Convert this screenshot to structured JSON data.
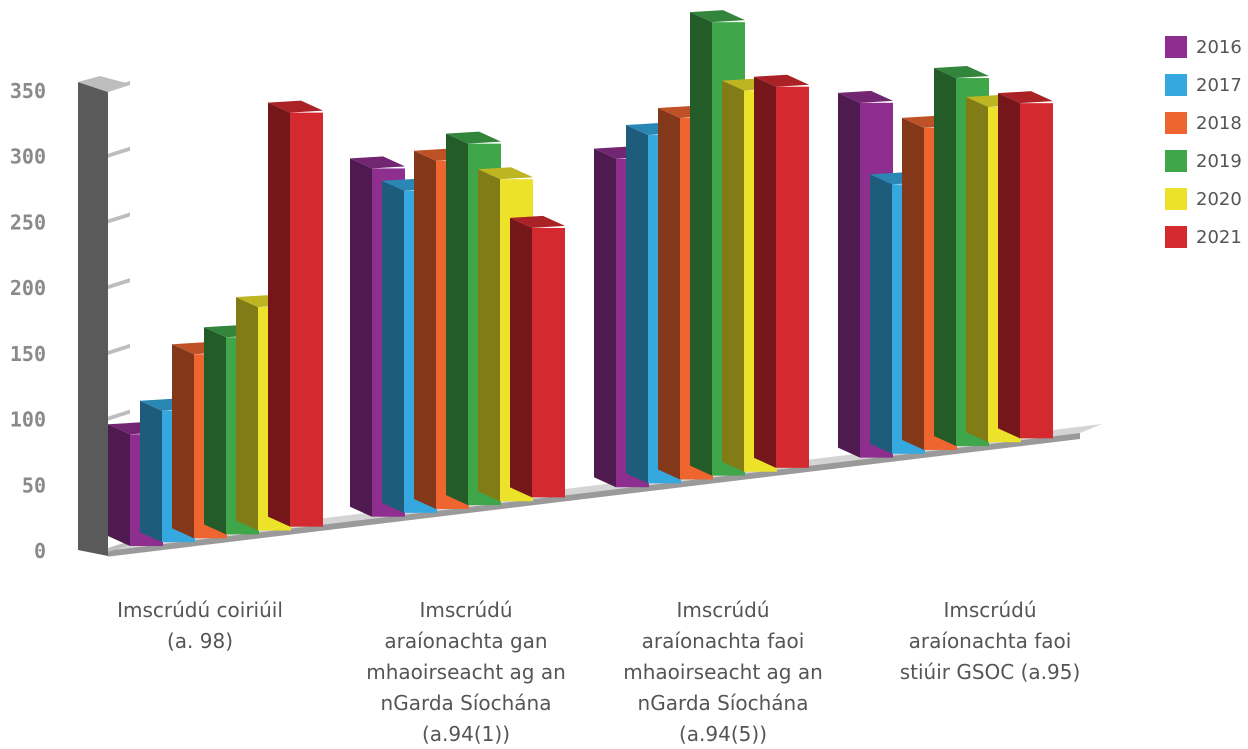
{
  "chart_data": {
    "type": "bar",
    "title": "",
    "xlabel": "",
    "ylabel": "",
    "ylim": [
      0,
      350
    ],
    "yticks": [
      0,
      50,
      100,
      150,
      200,
      250,
      300,
      350
    ],
    "categories": [
      [
        "Imscrúdú coiriúil",
        "(a. 98)"
      ],
      [
        "Imscrúdú",
        "araíonachta gan",
        "mhaoirseacht ag an",
        "nGarda Síochána",
        "(a.94(1))"
      ],
      [
        "Imscrúdú",
        "araíonachta faoi",
        "mhaoirseacht ag an",
        "nGarda Síochána",
        "(a.94(5))"
      ],
      [
        "Imscrúdú",
        "araíonachta faoi",
        "stiúir GSOC (a.95)"
      ]
    ],
    "series": [
      {
        "name": "2016",
        "color": "#8e2f8f",
        "values": [
          85,
          265,
          250,
          270
        ]
      },
      {
        "name": "2017",
        "color": "#35a8e0",
        "values": [
          100,
          245,
          265,
          205
        ]
      },
      {
        "name": "2018",
        "color": "#ef6530",
        "values": [
          140,
          265,
          275,
          245
        ]
      },
      {
        "name": "2019",
        "color": "#3fa64a",
        "values": [
          150,
          275,
          345,
          280
        ]
      },
      {
        "name": "2020",
        "color": "#ede22a",
        "values": [
          170,
          245,
          290,
          255
        ]
      },
      {
        "name": "2021",
        "color": "#d42a2f",
        "values": [
          315,
          205,
          290,
          255
        ]
      }
    ],
    "legend_position": "top-right",
    "grid": false
  }
}
